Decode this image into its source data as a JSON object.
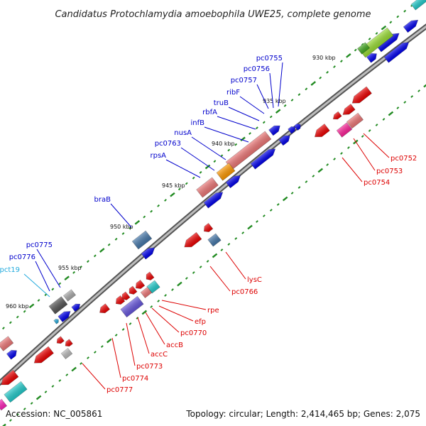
{
  "title": "Candidatus Protochlamydia amoebophila UWE25, complete genome",
  "footer": {
    "accession": "Accession: NC_005861",
    "topology": "Topology: circular; Length: 2,414,465 bp; Genes: 2,075"
  },
  "colors": {
    "backbone": "#8a8a8a",
    "tick": "#228b22",
    "forward_label": "#0000cc",
    "reverse_label": "#dd0000",
    "trna_label": "#22aadd"
  },
  "kbp_markers": [
    "930 kbp",
    "935 kbp",
    "940 kbp",
    "945 kbp",
    "950 kbp",
    "955 kbp",
    "960 kbp"
  ],
  "forward_gene_labels": [
    "pc0755",
    "pc0756",
    "pc0757",
    "ribF",
    "truB",
    "rbfA",
    "infB",
    "nusA",
    "pc0763",
    "rpsA",
    "braB",
    "pc0775",
    "pc0776"
  ],
  "trna_gene_labels": [
    "pct19"
  ],
  "reverse_gene_labels": [
    "pc0752",
    "pc0753",
    "pc0754",
    "lysC",
    "pc0766",
    "rpe",
    "efp",
    "pc0770",
    "accB",
    "accC",
    "pc0773",
    "pc0774",
    "pc0777"
  ]
}
